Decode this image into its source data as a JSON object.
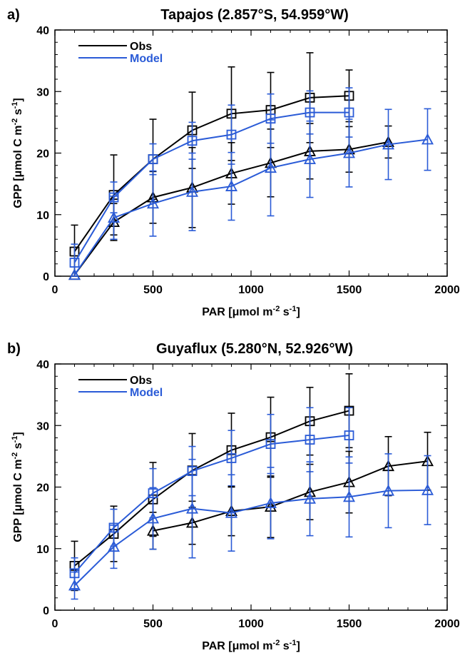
{
  "colors": {
    "obs": "#000000",
    "model": "#2a5bd7"
  },
  "chart_data": [
    {
      "type": "line",
      "panel_label": "a)",
      "title": "Tapajos (2.857°S, 54.959°W)",
      "xlabel": {
        "main": "PAR [",
        "mu": "μ",
        "rest": "mol m",
        "sup": "-2",
        "tail1": " s",
        "sup2": "-1",
        "tail2": "]"
      },
      "ylabel": {
        "main": "GPP [",
        "mu": "μ",
        "rest": "mol C m",
        "sup": "-2",
        "tail1": " s",
        "sup2": "-1",
        "tail2": "]"
      },
      "xlim": [
        0,
        2000
      ],
      "ylim": [
        0,
        40
      ],
      "xticks": [
        "0",
        "500",
        "1000",
        "1500",
        "2000"
      ],
      "yticks": [
        "0",
        "10",
        "20",
        "30",
        "40"
      ],
      "legend": {
        "placement": "top-left",
        "entries": [
          "Obs",
          "Model"
        ]
      },
      "series": [
        {
          "name": "Obs",
          "marker": "square",
          "color": "#000000",
          "x": [
            100,
            300,
            500,
            700,
            900,
            1100,
            1300,
            1500
          ],
          "y": [
            4.0,
            13.2,
            19.0,
            23.7,
            26.4,
            27.0,
            29.0,
            29.3
          ],
          "err": [
            4.3,
            6.5,
            6.5,
            6.2,
            7.6,
            6.1,
            7.3,
            4.2
          ]
        },
        {
          "name": "Model",
          "marker": "square",
          "color": "#2a5bd7",
          "x": [
            100,
            300,
            500,
            700,
            900,
            1100,
            1300,
            1500
          ],
          "y": [
            2.2,
            12.8,
            19.0,
            22.0,
            23.0,
            25.6,
            26.6,
            26.6
          ],
          "err": [
            3.0,
            2.5,
            2.5,
            3.0,
            4.8,
            4.0,
            3.5,
            4.0
          ]
        },
        {
          "name": "Obs",
          "marker": "triangle",
          "color": "#000000",
          "x": [
            100,
            300,
            500,
            700,
            900,
            1100,
            1300,
            1500,
            1700
          ],
          "y": [
            0.2,
            8.8,
            12.8,
            14.4,
            16.7,
            18.4,
            20.3,
            20.6,
            21.8
          ],
          "err": [
            0.0,
            3.0,
            4.2,
            6.5,
            5.0,
            5.5,
            4.5,
            3.7,
            2.6
          ]
        },
        {
          "name": "Model",
          "marker": "triangle",
          "color": "#2a5bd7",
          "x": [
            100,
            300,
            500,
            700,
            900,
            1100,
            1300,
            1500,
            1700,
            1900
          ],
          "y": [
            0.2,
            9.5,
            11.8,
            13.7,
            14.6,
            17.6,
            19.0,
            20.0,
            21.4,
            22.2
          ],
          "err": [
            0.0,
            3.5,
            5.3,
            6.3,
            5.5,
            7.8,
            6.2,
            5.5,
            5.7,
            5.0
          ]
        }
      ]
    },
    {
      "type": "line",
      "panel_label": "b)",
      "title": "Guyaflux (5.280°N, 52.926°W)",
      "xlabel": {
        "main": "PAR [",
        "mu": "μ",
        "rest": "mol m",
        "sup": "-2",
        "tail1": " s",
        "sup2": "-1",
        "tail2": "]"
      },
      "ylabel": {
        "main": "GPP [",
        "mu": "μ",
        "rest": "mol C m",
        "sup": "-2",
        "tail1": " s",
        "sup2": "-1",
        "tail2": "]"
      },
      "xlim": [
        0,
        2000
      ],
      "ylim": [
        0,
        40
      ],
      "xticks": [
        "0",
        "500",
        "1000",
        "1500",
        "2000"
      ],
      "yticks": [
        "0",
        "10",
        "20",
        "30",
        "40"
      ],
      "legend": {
        "placement": "top-left",
        "entries": [
          "Obs",
          "Model"
        ]
      },
      "series": [
        {
          "name": "Obs",
          "marker": "square",
          "color": "#000000",
          "x": [
            100,
            300,
            500,
            700,
            900,
            1100,
            1300,
            1500
          ],
          "y": [
            7.2,
            12.4,
            18.0,
            22.7,
            26.0,
            28.1,
            30.7,
            32.4
          ],
          "err": [
            4.0,
            4.5,
            6.0,
            6.0,
            6.0,
            6.5,
            5.5,
            6.0
          ]
        },
        {
          "name": "Model",
          "marker": "square",
          "color": "#2a5bd7",
          "x": [
            100,
            300,
            500,
            700,
            900,
            1100,
            1300,
            1500
          ],
          "y": [
            6.0,
            13.4,
            19.0,
            22.6,
            24.7,
            27.0,
            27.7,
            28.4
          ],
          "err": [
            2.5,
            3.0,
            4.0,
            4.0,
            4.5,
            4.8,
            5.2,
            4.5
          ]
        },
        {
          "name": "Obs",
          "marker": "triangle",
          "color": "#000000",
          "x": [
            500,
            700,
            900,
            1100,
            1300,
            1500,
            1700,
            1900
          ],
          "y": [
            12.9,
            14.2,
            16.1,
            16.8,
            19.2,
            20.8,
            23.4,
            24.2
          ],
          "err": [
            3.0,
            3.5,
            4.0,
            5.0,
            4.5,
            5.0,
            4.8,
            4.7
          ]
        },
        {
          "name": "Model",
          "marker": "triangle",
          "color": "#2a5bd7",
          "x": [
            100,
            300,
            500,
            700,
            900,
            1100,
            1300,
            1500,
            1700,
            1900
          ],
          "y": [
            4.0,
            10.3,
            14.9,
            16.5,
            15.8,
            17.4,
            18.1,
            18.4,
            19.4,
            19.5
          ],
          "err": [
            2.2,
            3.5,
            5.0,
            8.0,
            6.2,
            5.8,
            6.0,
            6.5,
            6.0,
            5.6
          ]
        }
      ]
    }
  ]
}
